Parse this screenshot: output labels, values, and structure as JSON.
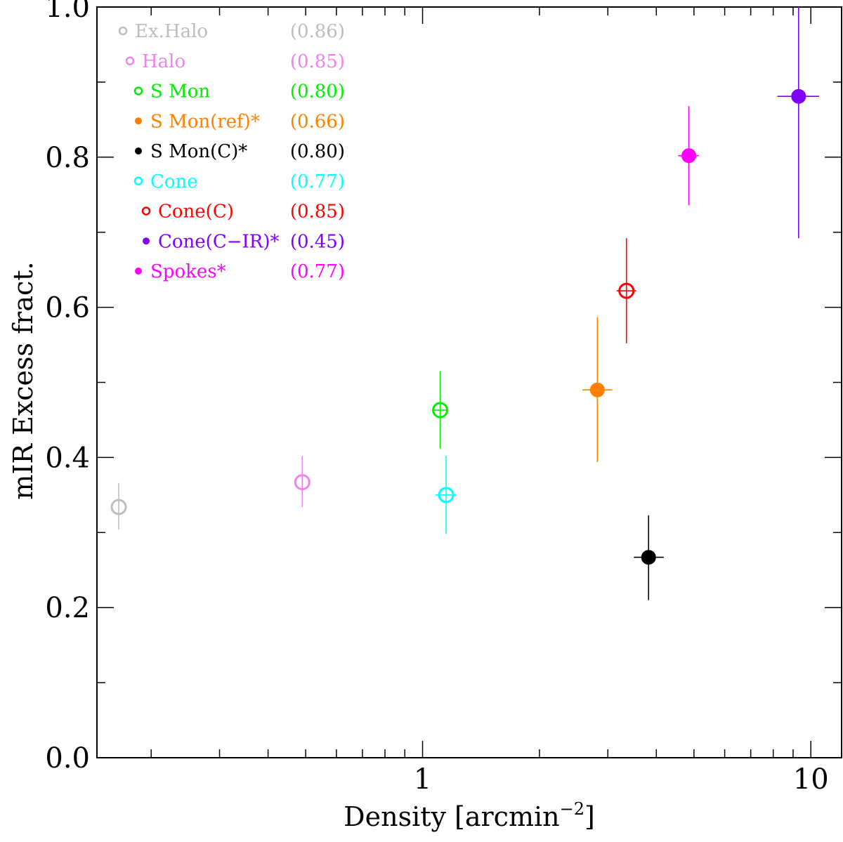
{
  "chart_data": {
    "type": "scatter",
    "title": "",
    "xlabel": "Density [arcmin",
    "xlabel_sup": "−2",
    "xlabel_suffix": "]",
    "ylabel": "mIR Excess fract.",
    "xscale": "log",
    "xlim": [
      0.145,
      12.0
    ],
    "ylim": [
      0.0,
      1.0
    ],
    "x_tick_labels": [
      {
        "value": 1,
        "label": "1"
      },
      {
        "value": 10,
        "label": "10"
      }
    ],
    "y_tick_labels": [
      {
        "value": 0.0,
        "label": "0.0"
      },
      {
        "value": 0.2,
        "label": "0.2"
      },
      {
        "value": 0.4,
        "label": "0.4"
      },
      {
        "value": 0.6,
        "label": "0.6"
      },
      {
        "value": 0.8,
        "label": "0.8"
      },
      {
        "value": 1.0,
        "label": "1.0"
      }
    ],
    "legend_position": "top-left",
    "series": [
      {
        "name": "Ex.Halo",
        "value_label": "(0.86)",
        "color": "#bdbdbd",
        "marker": "open",
        "x": 0.165,
        "y": 0.334,
        "x_err": [
          0.165,
          0.165
        ],
        "y_err": [
          0.304,
          0.366
        ]
      },
      {
        "name": "Halo",
        "value_label": "(0.85)",
        "color": "#ee82ee",
        "marker": "open",
        "x": 0.49,
        "y": 0.367,
        "x_err": [
          0.49,
          0.49
        ],
        "y_err": [
          0.334,
          0.402
        ]
      },
      {
        "name": "S Mon",
        "value_label": "(0.80)",
        "color": "#00ee00",
        "marker": "open",
        "x": 1.11,
        "y": 0.463,
        "x_err": [
          1.07,
          1.15
        ],
        "y_err": [
          0.412,
          0.515
        ]
      },
      {
        "name": "S Mon(ref)*",
        "value_label": "(0.66)",
        "color": "#ff7f00",
        "marker": "filled",
        "x": 2.82,
        "y": 0.49,
        "x_err": [
          2.58,
          3.08
        ],
        "y_err": [
          0.394,
          0.587
        ]
      },
      {
        "name": "S Mon(C)*",
        "value_label": "(0.80)",
        "color": "#000000",
        "marker": "filled",
        "x": 3.82,
        "y": 0.267,
        "x_err": [
          3.5,
          4.18
        ],
        "y_err": [
          0.21,
          0.323
        ]
      },
      {
        "name": "Cone",
        "value_label": "(0.77)",
        "color": "#00ffff",
        "marker": "open",
        "x": 1.15,
        "y": 0.35,
        "x_err": [
          1.08,
          1.22
        ],
        "y_err": [
          0.298,
          0.402
        ]
      },
      {
        "name": "Cone(C)",
        "value_label": "(0.85)",
        "color": "#ff0000",
        "marker": "open",
        "x": 3.35,
        "y": 0.622,
        "x_err": [
          3.16,
          3.55
        ],
        "y_err": [
          0.552,
          0.692
        ]
      },
      {
        "name": "Cone(C−IR)*",
        "value_label": "(0.45)",
        "color": "#7f00ff",
        "marker": "filled",
        "x": 9.3,
        "y": 0.881,
        "x_err": [
          8.2,
          10.5
        ],
        "y_err": [
          0.692,
          1.0
        ]
      },
      {
        "name": "Spokes*",
        "value_label": "(0.77)",
        "color": "#ff00ff",
        "marker": "filled",
        "x": 4.85,
        "y": 0.802,
        "x_err": [
          4.55,
          5.15
        ],
        "y_err": [
          0.736,
          0.868
        ]
      }
    ]
  }
}
